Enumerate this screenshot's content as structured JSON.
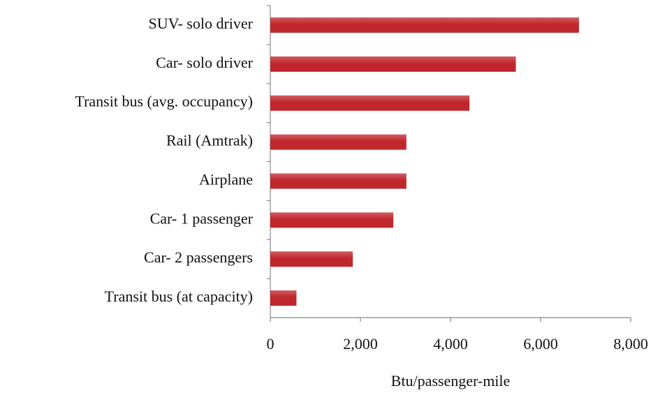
{
  "chart_data": {
    "type": "hbar",
    "categories": [
      "SUV- solo driver",
      "Car- solo driver",
      "Transit bus (avg. occupancy)",
      "Rail (Amtrak)",
      "Airplane",
      "Car- 1 passenger",
      "Car- 2 passengers",
      "Transit bus (at capacity)"
    ],
    "values": [
      6850,
      5450,
      4420,
      3020,
      3020,
      2730,
      1830,
      580
    ],
    "color": "#c0272d",
    "xlabel": "Btu/passenger-mile",
    "xlim": [
      0,
      8000
    ],
    "xticks": [
      0,
      {
        "value": 2000,
        "label": "2,000"
      },
      {
        "value": 4000,
        "label": "4,000"
      },
      {
        "value": 6000,
        "label": "6,000"
      },
      {
        "value": 8000,
        "label": "8,000"
      }
    ]
  }
}
